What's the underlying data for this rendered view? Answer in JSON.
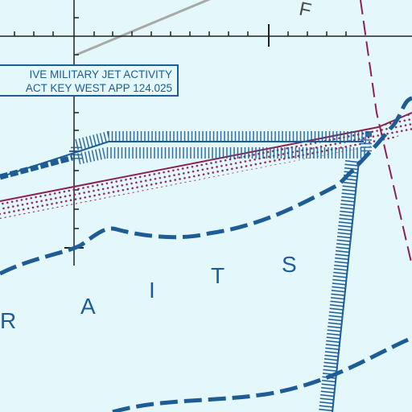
{
  "notice": {
    "line1": "IVE MILITARY JET ACTIVITY",
    "line2": "ACT KEY WEST APP 124.025"
  },
  "water_label_letters": [
    "R",
    "A",
    "I",
    "T",
    "S"
  ],
  "corner_label": "F",
  "colors": {
    "water": "#e4f8fb",
    "boundary_blue": "#1e5c96",
    "restricted_maroon": "#8b2252",
    "grid_black": "#222222",
    "route_gray": "#a8a8a8"
  }
}
